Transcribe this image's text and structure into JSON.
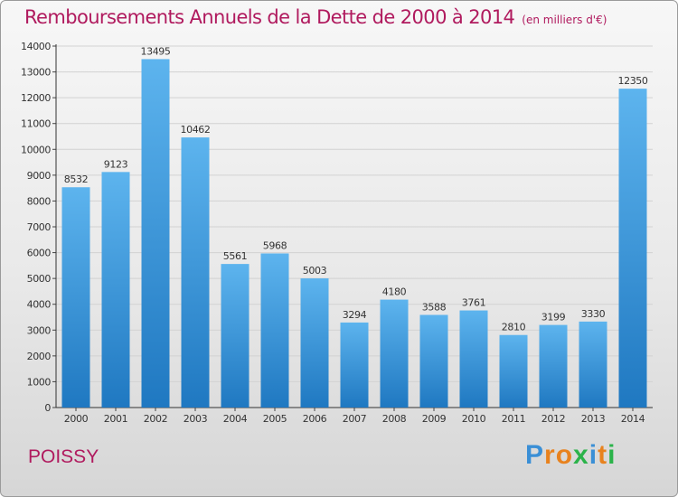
{
  "header": {
    "title": "Remboursements Annuels de la Dette de 2000 à 2014",
    "subtitle": "(en milliers d'€)"
  },
  "footer": {
    "city": "POISSY",
    "logo_text": "Proxiti"
  },
  "colors": {
    "accent": "#b01a5e",
    "bar_light": "#5db4ee",
    "bar_dark": "#1f78c1",
    "logo_letters": [
      "#3a8fd6",
      "#e8821e",
      "#e8821e",
      "#2bb34a",
      "#3a8fd6",
      "#e8821e",
      "#2bb34a"
    ]
  },
  "chart_data": {
    "type": "bar",
    "title": "Remboursements Annuels de la Dette de 2000 à 2014",
    "subtitle": "(en milliers d'€)",
    "xlabel": "",
    "ylabel": "",
    "categories": [
      "2000",
      "2001",
      "2002",
      "2003",
      "2004",
      "2005",
      "2006",
      "2007",
      "2008",
      "2009",
      "2010",
      "2011",
      "2012",
      "2013",
      "2014"
    ],
    "values": [
      8532,
      9123,
      13495,
      10462,
      5561,
      5968,
      5003,
      3294,
      4180,
      3588,
      3761,
      2810,
      3199,
      3330,
      12350
    ],
    "ylim": [
      0,
      14000
    ],
    "yticks": [
      0,
      1000,
      2000,
      3000,
      4000,
      5000,
      6000,
      7000,
      8000,
      9000,
      10000,
      11000,
      12000,
      13000,
      14000
    ],
    "grid": true,
    "legend": "none"
  }
}
